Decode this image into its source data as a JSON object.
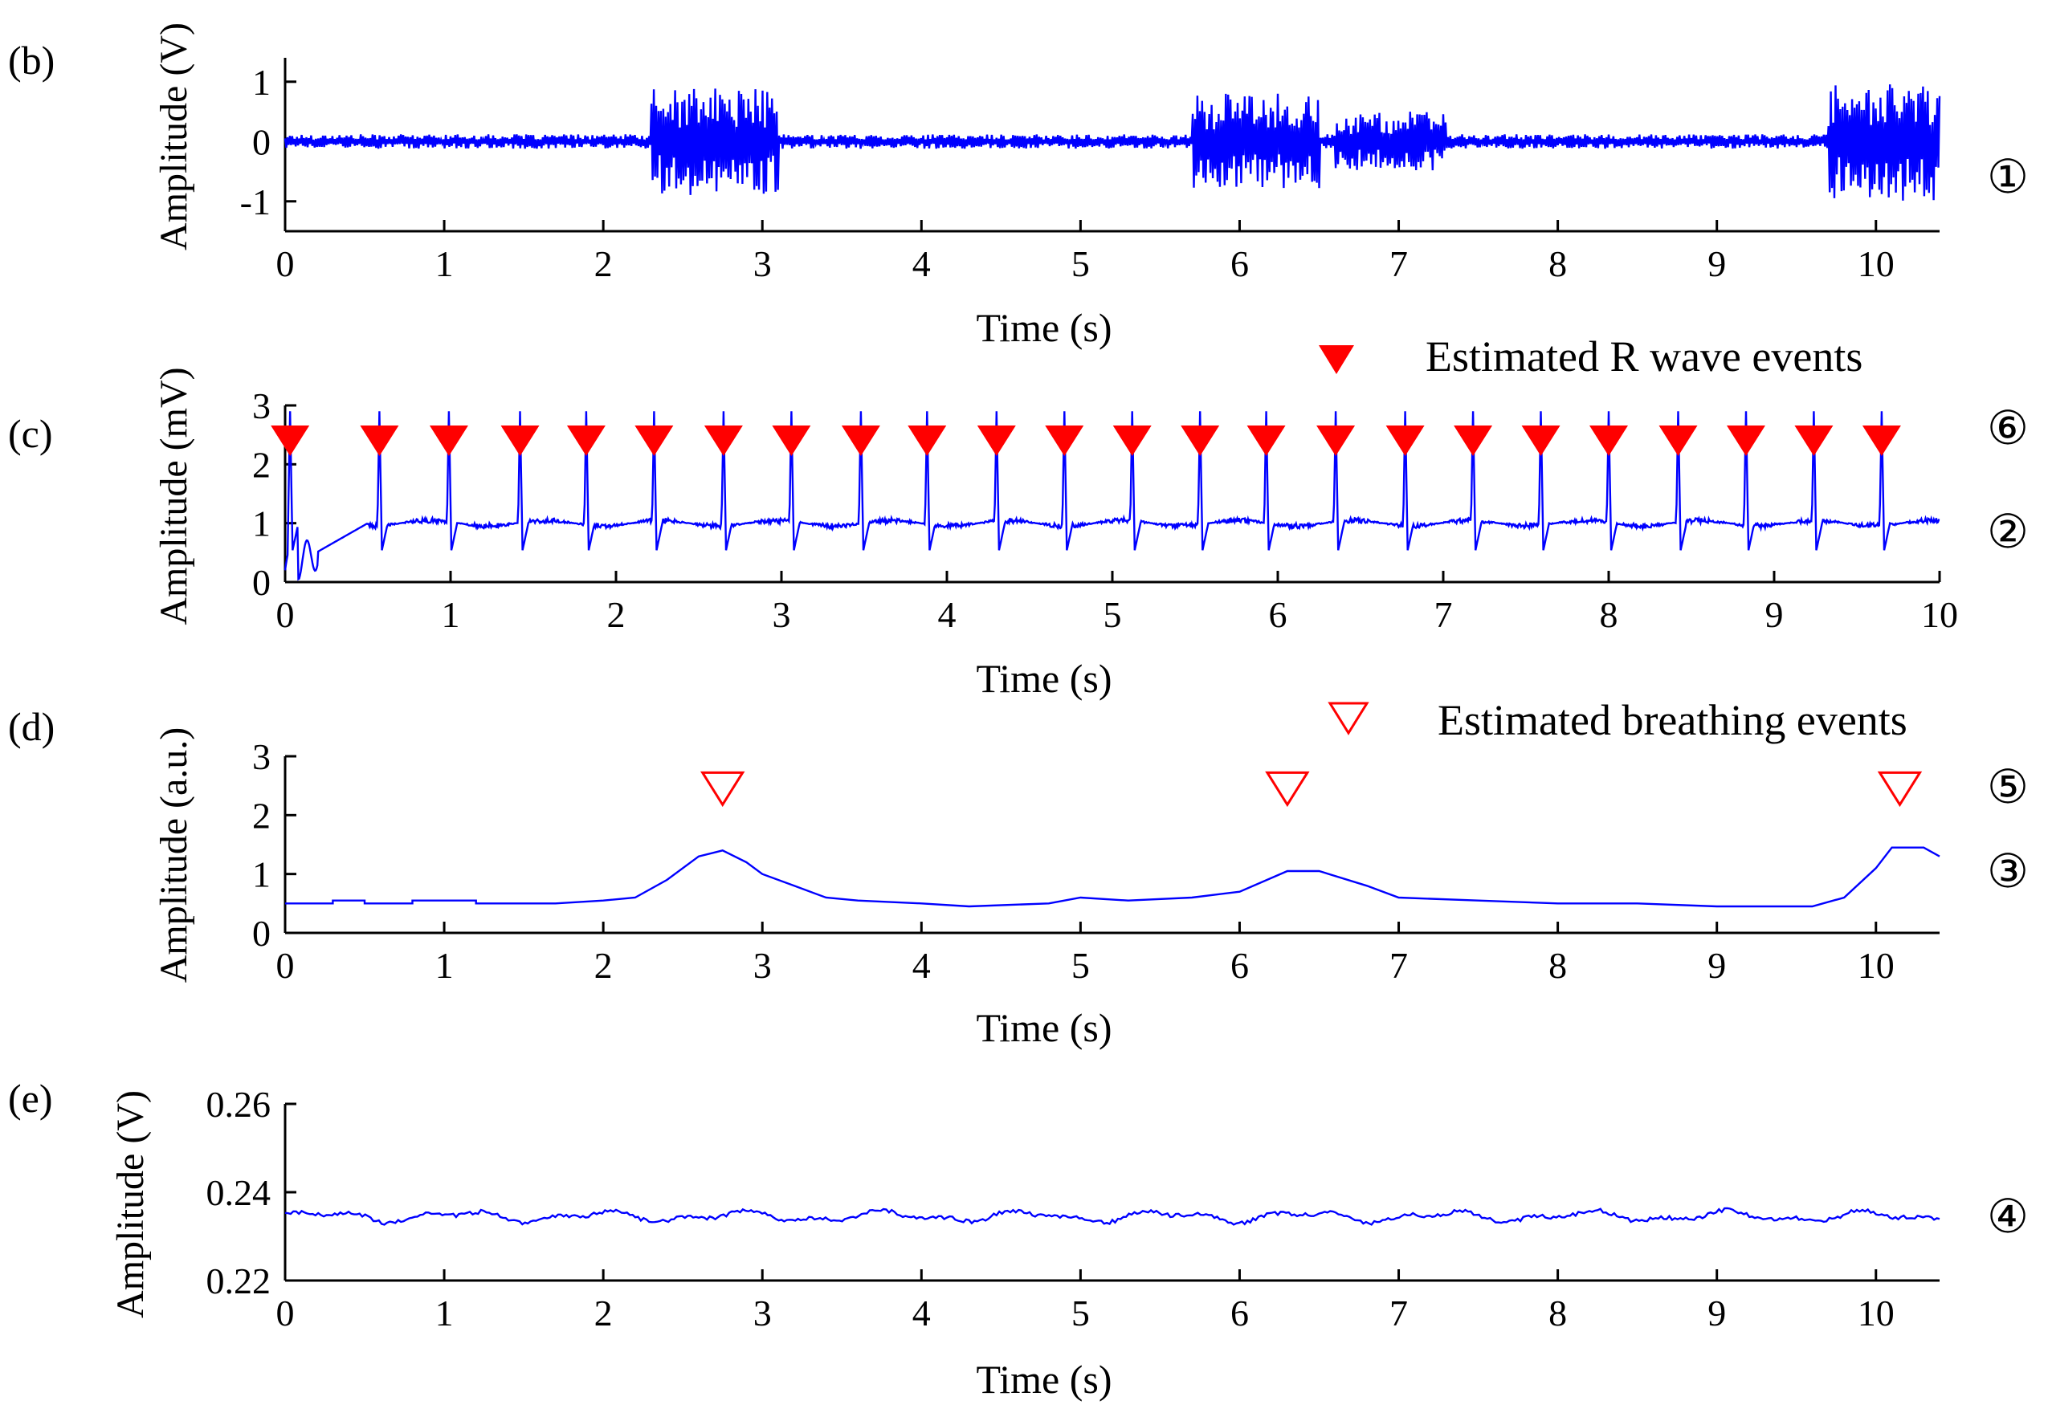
{
  "figure": {
    "signal_color": "#0000ff",
    "marker_color": "#ff0000",
    "axis_color": "#000000"
  },
  "chart_data": [
    {
      "id": "b",
      "type": "line",
      "panel_label": "(b)",
      "xlabel": "Time (s)",
      "ylabel": "Amplitude (V)",
      "xlim": [
        0,
        10.4
      ],
      "ylim": [
        -1.5,
        1.4
      ],
      "xticks": [
        0,
        1,
        2,
        3,
        4,
        5,
        6,
        7,
        8,
        9,
        10
      ],
      "yticks": [
        -1,
        0,
        1
      ],
      "ytick_labels": [
        "-1",
        "0",
        "1"
      ],
      "signal": {
        "kind": "noise",
        "baseline": 0,
        "amplitude": 0.12,
        "bursts": [
          {
            "t": [
              2.3,
              3.1
            ],
            "amp": 0.9
          },
          {
            "t": [
              5.7,
              6.5
            ],
            "amp": 0.8
          },
          {
            "t": [
              6.6,
              7.3
            ],
            "amp": 0.5
          },
          {
            "t": [
              9.7,
              10.4
            ],
            "amp": 1.0
          }
        ]
      },
      "right_marker": "①"
    },
    {
      "id": "c",
      "type": "line",
      "panel_label": "(c)",
      "xlabel": "Time (s)",
      "ylabel": "Amplitude (mV)",
      "xlim": [
        0,
        10
      ],
      "ylim": [
        0,
        3
      ],
      "xticks": [
        0,
        1,
        2,
        3,
        4,
        5,
        6,
        7,
        8,
        9,
        10
      ],
      "yticks": [
        0,
        1,
        2,
        3
      ],
      "ytick_labels": [
        "0",
        "1",
        "2",
        "3"
      ],
      "signal": {
        "kind": "ecg",
        "baseline": 1.0,
        "r_peaks": [
          0.03,
          0.57,
          0.99,
          1.42,
          1.82,
          2.23,
          2.65,
          3.06,
          3.48,
          3.88,
          4.3,
          4.71,
          5.12,
          5.53,
          5.93,
          6.35,
          6.77,
          7.18,
          7.59,
          8.0,
          8.42,
          8.83,
          9.24,
          9.65
        ],
        "r_height": 1.9,
        "s_depth": 0.5
      },
      "events": {
        "legend": "Estimated R wave events",
        "marker": "filled-triangle-down",
        "y": 2.4,
        "times": [
          0.03,
          0.57,
          0.99,
          1.42,
          1.82,
          2.23,
          2.65,
          3.06,
          3.48,
          3.88,
          4.3,
          4.71,
          5.12,
          5.53,
          5.93,
          6.35,
          6.77,
          7.18,
          7.59,
          8.0,
          8.42,
          8.83,
          9.24,
          9.65
        ]
      },
      "right_markers": [
        "⑥",
        "②"
      ]
    },
    {
      "id": "d",
      "type": "line",
      "panel_label": "(d)",
      "xlabel": "Time (s)",
      "ylabel": "Amplitude (a.u.)",
      "xlim": [
        0,
        10.4
      ],
      "ylim": [
        0,
        3
      ],
      "xticks": [
        0,
        1,
        2,
        3,
        4,
        5,
        6,
        7,
        8,
        9,
        10
      ],
      "yticks": [
        0,
        1,
        2,
        3
      ],
      "ytick_labels": [
        "0",
        "1",
        "2",
        "3"
      ],
      "signal": {
        "kind": "piecewise",
        "points": [
          [
            0,
            0.5
          ],
          [
            0.3,
            0.5
          ],
          [
            0.3,
            0.55
          ],
          [
            0.5,
            0.55
          ],
          [
            0.5,
            0.5
          ],
          [
            0.8,
            0.5
          ],
          [
            0.8,
            0.55
          ],
          [
            1.2,
            0.55
          ],
          [
            1.2,
            0.5
          ],
          [
            1.7,
            0.5
          ],
          [
            2.0,
            0.55
          ],
          [
            2.2,
            0.6
          ],
          [
            2.4,
            0.9
          ],
          [
            2.6,
            1.3
          ],
          [
            2.75,
            1.4
          ],
          [
            2.9,
            1.2
          ],
          [
            3.0,
            1.0
          ],
          [
            3.2,
            0.8
          ],
          [
            3.4,
            0.6
          ],
          [
            3.6,
            0.55
          ],
          [
            4.0,
            0.5
          ],
          [
            4.3,
            0.45
          ],
          [
            4.8,
            0.5
          ],
          [
            5.0,
            0.6
          ],
          [
            5.3,
            0.55
          ],
          [
            5.7,
            0.6
          ],
          [
            6.0,
            0.7
          ],
          [
            6.3,
            1.05
          ],
          [
            6.5,
            1.05
          ],
          [
            6.8,
            0.8
          ],
          [
            7.0,
            0.6
          ],
          [
            7.5,
            0.55
          ],
          [
            8.0,
            0.5
          ],
          [
            8.5,
            0.5
          ],
          [
            9.0,
            0.45
          ],
          [
            9.6,
            0.45
          ],
          [
            9.8,
            0.6
          ],
          [
            10.0,
            1.1
          ],
          [
            10.1,
            1.45
          ],
          [
            10.3,
            1.45
          ],
          [
            10.4,
            1.3
          ]
        ]
      },
      "events": {
        "legend": "Estimated breathing events",
        "marker": "open-triangle-down",
        "y": 2.45,
        "times": [
          2.75,
          6.3,
          10.15
        ]
      },
      "right_markers": [
        "⑤",
        "③"
      ]
    },
    {
      "id": "e",
      "type": "line",
      "panel_label": "(e)",
      "xlabel": "Time (s)",
      "ylabel": "Amplitude (V)",
      "xlim": [
        0,
        10.4
      ],
      "ylim": [
        0.22,
        0.26
      ],
      "xticks": [
        0,
        1,
        2,
        3,
        4,
        5,
        6,
        7,
        8,
        9,
        10
      ],
      "yticks": [
        0.22,
        0.24,
        0.26
      ],
      "ytick_labels": [
        "0.22",
        "0.24",
        "0.26"
      ],
      "signal": {
        "kind": "wobble",
        "baseline": 0.2345,
        "amplitude": 0.0015
      },
      "right_marker": "④"
    }
  ]
}
